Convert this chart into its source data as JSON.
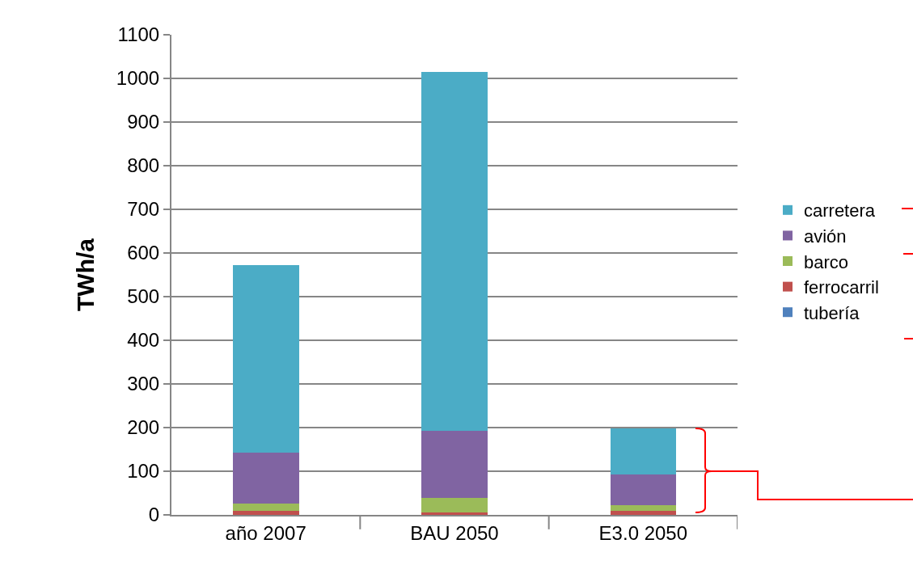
{
  "chart_data": {
    "type": "bar",
    "stacked": true,
    "ylabel": "TWh/a",
    "categories": [
      "año 2007",
      "BAU 2050",
      "E3.0 2050"
    ],
    "series": [
      {
        "name": "tubería",
        "color": "#4f81bd",
        "values": [
          0,
          0,
          0
        ]
      },
      {
        "name": "ferrocarril",
        "color": "#c0504d",
        "values": [
          10,
          5,
          10
        ]
      },
      {
        "name": "barco",
        "color": "#9bbb59",
        "values": [
          16,
          34,
          13
        ]
      },
      {
        "name": "avión",
        "color": "#8064a2",
        "values": [
          117,
          154,
          70
        ]
      },
      {
        "name": "carretera",
        "color": "#4bacc6",
        "values": [
          429,
          822,
          105
        ]
      }
    ],
    "ylim": [
      0,
      1100
    ],
    "yticks": [
      0,
      100,
      200,
      300,
      400,
      500,
      600,
      700,
      800,
      900,
      1000,
      1100
    ],
    "grid": "y",
    "legend": "right"
  }
}
